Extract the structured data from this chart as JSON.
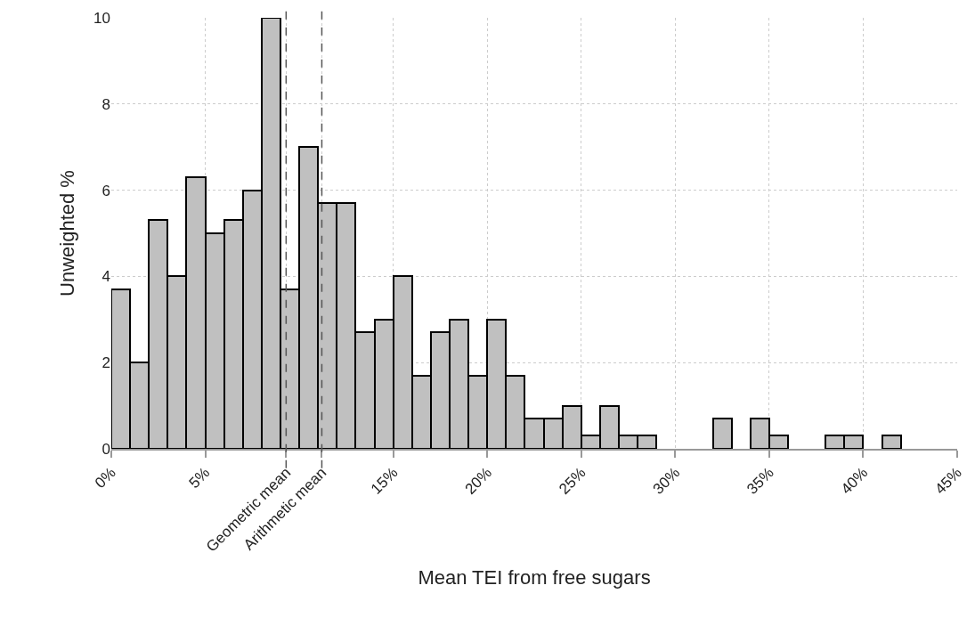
{
  "chart_data": {
    "type": "histogram",
    "xlabel": "Mean TEI from free sugars",
    "ylabel": "Unweighted %",
    "bins": [
      0,
      1,
      2,
      3,
      4,
      5,
      6,
      7,
      8,
      9,
      10,
      11,
      12,
      13,
      14,
      15,
      16,
      17,
      18,
      19,
      20,
      21,
      22,
      23,
      24,
      25,
      26,
      27,
      28,
      29,
      30,
      31,
      32,
      33,
      34,
      35,
      36,
      37,
      38,
      39,
      40,
      41,
      42
    ],
    "values": [
      3.7,
      2,
      5.3,
      4,
      6.3,
      5,
      5.3,
      6,
      10,
      3.7,
      7,
      5.7,
      5.7,
      2.7,
      3,
      4,
      1.7,
      2.7,
      3,
      1.7,
      3,
      1.7,
      0.7,
      0.7,
      1,
      0.3,
      1,
      0.3,
      0.3,
      0,
      0,
      0,
      0.7,
      0,
      0.7,
      0.3,
      0,
      0,
      0.3,
      0.3,
      0,
      0.3
    ],
    "color": "#c0c0c0",
    "xlim": [
      0,
      45
    ],
    "xticks": [
      {
        "value": 0,
        "label": "0%"
      },
      {
        "value": 5,
        "label": "5%"
      },
      {
        "value": 15,
        "label": "15%"
      },
      {
        "value": 20,
        "label": "20%"
      },
      {
        "value": 25,
        "label": "25%"
      },
      {
        "value": 30,
        "label": "30%"
      },
      {
        "value": 35,
        "label": "35%"
      },
      {
        "value": 40,
        "label": "40%"
      },
      {
        "value": 45,
        "label": "45%"
      }
    ],
    "ylim": [
      0,
      10
    ],
    "yticks": [
      0,
      2,
      4,
      6,
      8,
      10
    ],
    "ref_lines": [
      {
        "axis": "x",
        "value": 9.3,
        "label": "Geometric mean",
        "line_style": "dashed",
        "color": "#555555"
      },
      {
        "axis": "x",
        "value": 11.2,
        "label": "Arithmetic mean",
        "line_style": "dashed",
        "color": "#555555"
      }
    ],
    "grid": true
  }
}
